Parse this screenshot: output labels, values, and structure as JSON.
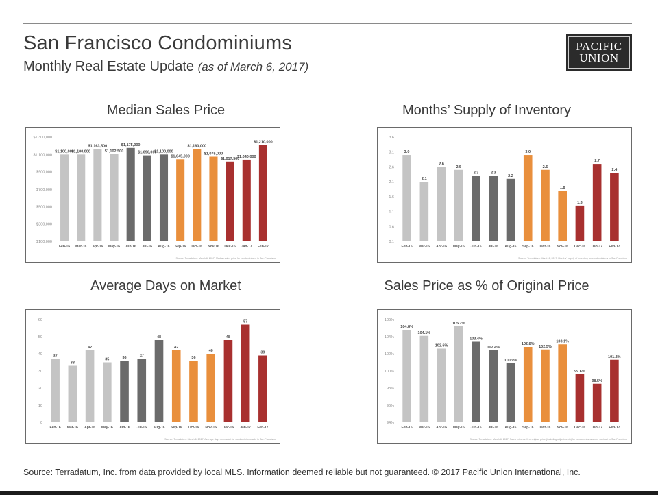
{
  "header": {
    "title": "San Francisco Condominiums",
    "subtitle": "Monthly Real Estate Update",
    "as_of": "(as of March 6, 2017)",
    "logo_line1": "PACIFIC",
    "logo_line2": "UNION"
  },
  "footer": {
    "source": "Source: Terradatum, Inc. from data provided by local MLS. Information deemed reliable but not guaranteed.  © 2017 Pacific Union International, Inc."
  },
  "colors": {
    "light_gray": "#c4c4c4",
    "dark_gray": "#6b6b6b",
    "orange": "#e98f3c",
    "red": "#a8302f"
  },
  "chart_data": [
    {
      "type": "bar",
      "title": "Median Sales Price",
      "categories": [
        "Feb-16",
        "Mar-16",
        "Apr-16",
        "May-16",
        "Jun-16",
        "Jul-16",
        "Aug-16",
        "Sep-16",
        "Oct-16",
        "Nov-16",
        "Dec-16",
        "Jan-17",
        "Feb-17"
      ],
      "values": [
        1100000,
        1100000,
        1163500,
        1102500,
        1175000,
        1090000,
        1100000,
        1045000,
        1160000,
        1075000,
        1017500,
        1040000,
        1210000
      ],
      "labels": [
        "$1,100,000",
        "$1,100,000",
        "$1,163,500",
        "$1,102,500",
        "$1,175,000",
        "$1,090,000",
        "$1,100,000",
        "$1,045,000",
        "$1,160,000",
        "$1,075,000",
        "$1,017,500",
        "$1,040,000",
        "$1,210,000"
      ],
      "bar_colors": [
        "light_gray",
        "light_gray",
        "light_gray",
        "light_gray",
        "dark_gray",
        "dark_gray",
        "dark_gray",
        "orange",
        "orange",
        "orange",
        "red",
        "red",
        "red"
      ],
      "ylim": [
        100000,
        1300000
      ],
      "yticks": [
        100000,
        300000,
        500000,
        700000,
        900000,
        1100000,
        1300000
      ],
      "ytick_labels": [
        "$100,000",
        "$300,000",
        "$500,000",
        "$700,000",
        "$900,000",
        "$1,100,000",
        "$1,300,000"
      ],
      "note": "Source: Terradatum.  March 6, 2017.  Median sales price for condominiums in San Francisco"
    },
    {
      "type": "bar",
      "title": "Months’ Supply of Inventory",
      "categories": [
        "Feb-16",
        "Mar-16",
        "Apr-16",
        "May-16",
        "Jun-16",
        "Jul-16",
        "Aug-16",
        "Sep-16",
        "Oct-16",
        "Nov-16",
        "Dec-16",
        "Jan-17",
        "Feb-17"
      ],
      "values": [
        3.0,
        2.1,
        2.6,
        2.5,
        2.3,
        2.3,
        2.2,
        3.0,
        2.5,
        1.8,
        1.3,
        2.7,
        2.4
      ],
      "labels": [
        "3.0",
        "2.1",
        "2.6",
        "2.5",
        "2.3",
        "2.3",
        "2.2",
        "3.0",
        "2.5",
        "1.8",
        "1.3",
        "2.7",
        "2.4"
      ],
      "bar_colors": [
        "light_gray",
        "light_gray",
        "light_gray",
        "light_gray",
        "dark_gray",
        "dark_gray",
        "dark_gray",
        "orange",
        "orange",
        "orange",
        "red",
        "red",
        "red"
      ],
      "ylim": [
        0.1,
        3.6
      ],
      "yticks": [
        0.1,
        0.6,
        1.1,
        1.6,
        2.1,
        2.6,
        3.1,
        3.6
      ],
      "ytick_labels": [
        "0.1",
        "0.6",
        "1.1",
        "1.6",
        "2.1",
        "2.6",
        "3.1",
        "3.6"
      ],
      "note": "Source: Terradatum.  March 6, 2017.  Months' supply of inventory for condominiums in San Francisco"
    },
    {
      "type": "bar",
      "title": "Average Days on Market",
      "categories": [
        "Feb-16",
        "Mar-16",
        "Apr-16",
        "May-16",
        "Jun-16",
        "Jul-16",
        "Aug-16",
        "Sep-16",
        "Oct-16",
        "Nov-16",
        "Dec-16",
        "Jan-17",
        "Feb-17"
      ],
      "values": [
        37,
        33,
        42,
        35,
        36,
        37,
        48,
        42,
        36,
        40,
        48,
        57,
        39
      ],
      "labels": [
        "37",
        "33",
        "42",
        "35",
        "36",
        "37",
        "48",
        "42",
        "36",
        "40",
        "48",
        "57",
        "39"
      ],
      "bar_colors": [
        "light_gray",
        "light_gray",
        "light_gray",
        "light_gray",
        "dark_gray",
        "dark_gray",
        "dark_gray",
        "orange",
        "orange",
        "orange",
        "red",
        "red",
        "red"
      ],
      "ylim": [
        0,
        60
      ],
      "yticks": [
        0,
        10,
        20,
        30,
        40,
        50,
        60
      ],
      "ytick_labels": [
        "0",
        "10",
        "20",
        "30",
        "40",
        "50",
        "60"
      ],
      "note": "Source: Terradatum.  March 6, 2017.  Average days on market for condominiums sold in San Francisco"
    },
    {
      "type": "bar",
      "title": "Sales Price as % of Original Price",
      "categories": [
        "Feb-16",
        "Mar-16",
        "Apr-16",
        "May-16",
        "Jun-16",
        "Jul-16",
        "Aug-16",
        "Sep-16",
        "Oct-16",
        "Nov-16",
        "Dec-16",
        "Jan-17",
        "Feb-17"
      ],
      "values": [
        104.8,
        104.1,
        102.6,
        105.2,
        103.4,
        102.4,
        100.9,
        102.8,
        102.5,
        103.1,
        99.6,
        98.5,
        101.3
      ],
      "labels": [
        "104.8%",
        "104.1%",
        "102.6%",
        "105.2%",
        "103.4%",
        "102.4%",
        "100.9%",
        "102.8%",
        "102.5%",
        "103.1%",
        "99.6%",
        "98.5%",
        "101.3%"
      ],
      "bar_colors": [
        "light_gray",
        "light_gray",
        "light_gray",
        "light_gray",
        "dark_gray",
        "dark_gray",
        "dark_gray",
        "orange",
        "orange",
        "orange",
        "red",
        "red",
        "red"
      ],
      "ylim": [
        94,
        106
      ],
      "yticks": [
        94,
        96,
        98,
        100,
        102,
        104,
        106
      ],
      "ytick_labels": [
        "94%",
        "96%",
        "98%",
        "100%",
        "102%",
        "104%",
        "106%"
      ],
      "note": "Source: Terradatum.  March 6, 2017.  Sales price as % of original price (including adjustments) for condominiums under contract in San Francisco"
    }
  ]
}
